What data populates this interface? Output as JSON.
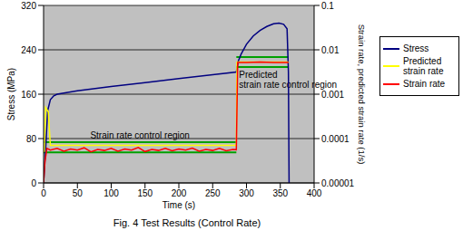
{
  "chart_data": {
    "type": "line",
    "title": "Fig. 4 Test Results (Control Rate)",
    "x_label": "Time (s)",
    "y_label": "Stress (MPa)",
    "y2_label": "Strain rate, predicted strain rate (1/s)",
    "xlim": [
      0,
      400
    ],
    "xticks": [
      0,
      50,
      100,
      150,
      200,
      250,
      300,
      350,
      400
    ],
    "ylim": [
      0,
      320
    ],
    "yticks": [
      0,
      80,
      160,
      240,
      320
    ],
    "y2lim": [
      1e-05,
      0.1
    ],
    "y2ticks": [
      {
        "value": 1e-05,
        "label": "0.00001"
      },
      0.0001,
      0.001,
      0.01,
      0.1
    ],
    "log": "y2",
    "grid": true,
    "legend": "right",
    "series": [
      {
        "name": "Stress",
        "color": "#000080",
        "x": [
          0,
          3,
          6,
          10,
          15,
          20,
          50,
          100,
          150,
          200,
          250,
          285,
          288,
          292,
          300,
          310,
          320,
          330,
          340,
          348,
          355,
          360,
          362,
          363
        ],
        "values": [
          0,
          60,
          130,
          150,
          157,
          160,
          166,
          174,
          181,
          188,
          195,
          200,
          220,
          232,
          250,
          265,
          275,
          282,
          287,
          288,
          286,
          278,
          200,
          0
        ]
      },
      {
        "name": "Predicted strain rate",
        "color": "#ffff00",
        "axis": "y2",
        "x": [
          1,
          3,
          7,
          10,
          285,
          286,
          362
        ],
        "values": [
          5e-05,
          0.0005,
          0.0004,
          7e-05,
          7e-05,
          0.0053,
          0.0053
        ]
      },
      {
        "name": "Strain rate",
        "color": "#ff0000",
        "axis": "y2",
        "x": [
          0,
          2,
          5,
          10,
          20,
          30,
          40,
          50,
          60,
          70,
          80,
          90,
          100,
          110,
          120,
          130,
          140,
          150,
          160,
          170,
          180,
          190,
          200,
          210,
          220,
          230,
          240,
          250,
          260,
          270,
          280,
          285,
          287,
          300,
          320,
          340,
          362
        ],
        "values": [
          1e-05,
          3e-05,
          6e-05,
          5.5e-05,
          6e-05,
          5.2e-05,
          5.8e-05,
          5.5e-05,
          6.2e-05,
          5e-05,
          5.7e-05,
          5.4e-05,
          6e-05,
          5.2e-05,
          5.8e-05,
          5.5e-05,
          6.3e-05,
          5.1e-05,
          5.7e-05,
          5.4e-05,
          6e-05,
          5.3e-05,
          5.8e-05,
          5.5e-05,
          6.1e-05,
          5.2e-05,
          5.7e-05,
          5.4e-05,
          6e-05,
          5.3e-05,
          5.7e-05,
          5.6e-05,
          0.0052,
          0.0052,
          0.0053,
          0.0052,
          0.0052
        ]
      }
    ],
    "control_regions": [
      {
        "label": "Strain rate control region",
        "x": [
          0,
          285
        ],
        "lower": 4.9e-05,
        "upper": 8.3e-05
      },
      {
        "label": "Predicted strain rate control region",
        "x": [
          285,
          362
        ],
        "lower": 0.0041,
        "upper": 0.0069
      }
    ]
  }
}
